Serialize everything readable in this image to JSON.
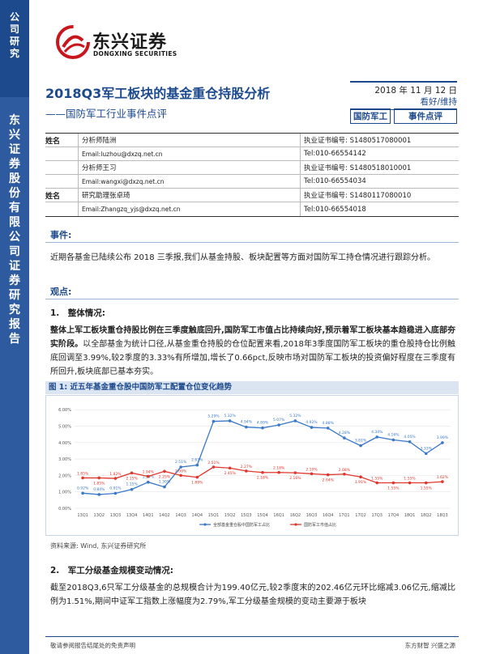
{
  "sidebar": {
    "top_text": [
      "公",
      "司",
      "研",
      "究"
    ],
    "bottom_text": [
      "东",
      "兴",
      "证",
      "券",
      "股",
      "份",
      "有",
      "限",
      "公",
      "司",
      "证",
      "券",
      "研",
      "究",
      "报",
      "告"
    ],
    "colors": {
      "top": "#1d4a8c",
      "bottom": "#2e5a9f"
    }
  },
  "logo": {
    "name_cn": "东兴证券",
    "name_en": "DONGXING SECURITIES",
    "mark_color": "#c8161d"
  },
  "report": {
    "title": "2018Q3军工板块的基金重仓持股分析",
    "subtitle": "——国防军工行业事件点评",
    "date": "2018 年 11 月 12 日",
    "rating": "看好/维持",
    "tag_industry": "国防军工",
    "tag_type": "事件点评"
  },
  "analysts": [
    {
      "label": "姓名",
      "role": "分析师陆洲",
      "cert": "执业证书编号: S1480517080001",
      "email": "Email:luzhou@dxzq.net.cn",
      "tel": "Tel:010-66554142"
    },
    {
      "label": "",
      "role": "分析师王习",
      "cert": "执业证书编号: S1480518010001",
      "email": "Email:wangxi@dxzq.net.cn",
      "tel": "Tel:010-66554034"
    },
    {
      "label": "姓名",
      "role": "研究助理张卓琦",
      "cert": "执业证书编号: S1480117080010",
      "email": "Email:Zhangzq_yjs@dxzq.net.cn",
      "tel": "Tel:010-66554018"
    }
  ],
  "sections": {
    "event_label": "事件:",
    "event_text": "近期各基金已陆续公布 2018 三季报,我们从基金持股、板块配置等方面对国防军工持仓情况进行跟踪分析。",
    "view_label": "观点:",
    "h1": "1.　整体情况:",
    "p1_bold": "整体上军工板块重仓持股比例在三季度触底回升,国防军工市值占比持续向好,预示着军工板块基本趋稳进入底部夯实阶段。",
    "p1_rest": "以全部基金为统计口径,从基金重仓持股的仓位配置来看,2018年3季度国防军工板块的重仓股持仓比例触底回调至3.99%,较2季度的3.33%有所增加,增长了0.66pct,反映市场对国防军工板块的投资偏好程度在三季度有所回升,板块底部已基本夯实。",
    "h2": "2.　军工分级基金规模变动情况:",
    "p2": "截至2018Q3,6只军工分级基金的总规模合计为199.40亿元,较2季度末的202.46亿元环比缩减3.06亿元,缩减比例为1.51%,期间中证军工指数上涨幅度为2.79%,军工分级基金规模的变动主要源于板块"
  },
  "figure": {
    "title": "图 1: 近五年基金重仓股中国防军工配置仓位变化趋势",
    "source": "资料来源: Wind, 东兴证券研究所"
  },
  "chart_data": {
    "type": "line",
    "categories": [
      "13Q1",
      "13Q2",
      "13Q3",
      "13Q4",
      "14Q1",
      "14Q2",
      "14Q3",
      "14Q4",
      "15Q1",
      "15Q2",
      "15Q3",
      "15Q4",
      "16Q1",
      "16Q2",
      "16Q3",
      "16Q4",
      "17Q1",
      "17Q2",
      "17Q3",
      "17Q4",
      "18Q1",
      "18Q2",
      "18Q3"
    ],
    "yticks": [
      "0.00%",
      "1.00%",
      "2.00%",
      "3.00%",
      "4.00%",
      "5.00%",
      "6.00%"
    ],
    "ylim": [
      0,
      6.5
    ],
    "series": [
      {
        "name": "全部基金重仓股中国防军工占比",
        "color": "#3a78c8",
        "values": [
          0.92,
          0.84,
          0.91,
          1.15,
          1.59,
          1.3,
          2.51,
          2.63,
          5.29,
          5.32,
          4.94,
          4.89,
          5.07,
          5.32,
          4.92,
          4.88,
          4.28,
          3.81,
          4.34,
          4.16,
          4.05,
          3.33,
          3.99
        ],
        "labels": [
          "0.92%",
          "0.84%",
          "0.91%",
          "1.15%",
          "1.59%",
          "1.30%",
          "2.51%",
          "2.63%",
          "5.29%",
          "5.32%",
          "4.94%",
          "4.89%",
          "5.07%",
          "5.32%",
          "4.92%",
          "4.88%",
          "4.28%",
          "3.81%",
          "4.34%",
          "4.16%",
          "4.05%",
          "3.33%",
          "3.99%"
        ]
      },
      {
        "name": "国防军工市值占比",
        "color": "#e0362c",
        "values": [
          1.85,
          1.85,
          1.82,
          2.15,
          1.94,
          2.25,
          2.0,
          1.89,
          2.51,
          2.45,
          2.27,
          2.18,
          2.18,
          2.16,
          2.1,
          2.04,
          2.08,
          1.91,
          1.55,
          1.55,
          1.55,
          1.55,
          1.62
        ],
        "labels": [
          "1.85%",
          "1.85%",
          "1.82%",
          "2.15%",
          "1.94%",
          "2.25%",
          "2.00%",
          "1.89%",
          "2.51%",
          "2.45%",
          "2.27%",
          "2.18%",
          "2.18%",
          "2.16%",
          "2.10%",
          "2.04%",
          "2.08%",
          "1.91%",
          "1.55%",
          "1.55%",
          "1.55%",
          "1.55%",
          "1.62%"
        ]
      }
    ]
  },
  "footer": {
    "left": "敬请参阅报告结尾处的免责声明",
    "right": "东方财智 兴盛之源"
  }
}
